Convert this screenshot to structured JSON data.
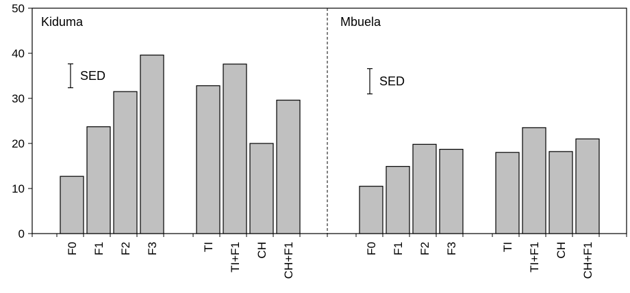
{
  "chart_data": {
    "type": "bar",
    "ylim": [
      0,
      50
    ],
    "yticks": [
      0,
      10,
      20,
      30,
      40,
      50
    ],
    "xlabel": "",
    "ylabel": "",
    "grid": false,
    "bar_color": "#c0c0c0",
    "sed_label": "SED",
    "panels": [
      {
        "title": "Kiduma",
        "categories": [
          "F0",
          "F1",
          "F2",
          "F3",
          "TI",
          "TI+F1",
          "CH",
          "CH+F1"
        ],
        "values": [
          12.7,
          23.7,
          31.5,
          39.6,
          32.8,
          37.6,
          20.0,
          29.6
        ],
        "sed": 5.3
      },
      {
        "title": "Mbuela",
        "categories": [
          "F0",
          "F1",
          "F2",
          "F3",
          "TI",
          "TI+F1",
          "CH",
          "CH+F1"
        ],
        "values": [
          10.5,
          14.9,
          19.8,
          18.7,
          18.0,
          23.5,
          18.2,
          21.0
        ],
        "sed": 5.6
      }
    ]
  }
}
